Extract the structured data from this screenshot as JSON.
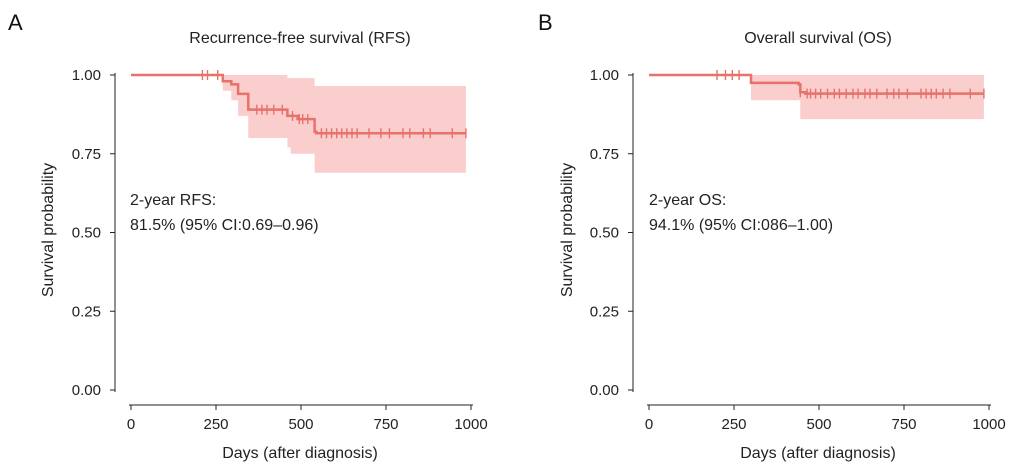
{
  "chart_data": [
    {
      "panel": "A",
      "type": "line",
      "title": "Recurrence-free survival (RFS)",
      "xlabel": "Days (after diagnosis)",
      "ylabel": "Survival probability",
      "xlim": [
        0,
        1000
      ],
      "ylim": [
        0,
        1
      ],
      "xticks": [
        "0",
        "250",
        "500",
        "750",
        "1000"
      ],
      "yticks": [
        "0.00",
        "0.25",
        "0.50",
        "0.75",
        "1.00"
      ],
      "annotation": [
        "2-year RFS:",
        "81.5% (95% CI:0.69–0.96)"
      ],
      "color": "#e8716a",
      "ci_color": "#f9c9c6",
      "grid": false,
      "series": [
        {
          "steps": [
            {
              "x": 0,
              "y": 1.0
            },
            {
              "x": 270,
              "y": 0.98
            },
            {
              "x": 295,
              "y": 0.97
            },
            {
              "x": 315,
              "y": 0.94
            },
            {
              "x": 345,
              "y": 0.89
            },
            {
              "x": 365,
              "y": 0.89
            },
            {
              "x": 460,
              "y": 0.87
            },
            {
              "x": 490,
              "y": 0.86
            },
            {
              "x": 540,
              "y": 0.82
            },
            {
              "x": 545,
              "y": 0.815
            },
            {
              "x": 985,
              "y": 0.815
            }
          ],
          "ci": [
            {
              "x": 0,
              "lo": 1.0,
              "hi": 1.0
            },
            {
              "x": 270,
              "lo": 0.95,
              "hi": 1.0
            },
            {
              "x": 295,
              "lo": 0.92,
              "hi": 1.0
            },
            {
              "x": 315,
              "lo": 0.87,
              "hi": 1.0
            },
            {
              "x": 345,
              "lo": 0.8,
              "hi": 1.0
            },
            {
              "x": 460,
              "lo": 0.77,
              "hi": 0.99
            },
            {
              "x": 470,
              "lo": 0.75,
              "hi": 0.99
            },
            {
              "x": 540,
              "lo": 0.69,
              "hi": 0.965
            },
            {
              "x": 985,
              "lo": 0.69,
              "hi": 0.965
            }
          ],
          "censored_x": [
            210,
            225,
            255,
            370,
            385,
            400,
            420,
            445,
            475,
            495,
            505,
            520,
            560,
            575,
            590,
            605,
            620,
            635,
            650,
            665,
            700,
            735,
            760,
            800,
            820,
            860,
            880,
            945,
            985
          ]
        }
      ]
    },
    {
      "panel": "B",
      "type": "line",
      "title": "Overall survival (OS)",
      "xlabel": "Days (after diagnosis)",
      "ylabel": "Survival probability",
      "xlim": [
        0,
        1000
      ],
      "ylim": [
        0,
        1
      ],
      "xticks": [
        "0",
        "250",
        "500",
        "750",
        "1000"
      ],
      "yticks": [
        "0.00",
        "0.25",
        "0.50",
        "0.75",
        "1.00"
      ],
      "annotation": [
        "2-year OS:",
        "94.1% (95% CI:086–1.00)"
      ],
      "color": "#e8716a",
      "ci_color": "#f9c9c6",
      "grid": false,
      "series": [
        {
          "steps": [
            {
              "x": 0,
              "y": 1.0
            },
            {
              "x": 300,
              "y": 0.975
            },
            {
              "x": 440,
              "y": 0.97
            },
            {
              "x": 445,
              "y": 0.945
            },
            {
              "x": 460,
              "y": 0.941
            },
            {
              "x": 985,
              "y": 0.941
            }
          ],
          "ci": [
            {
              "x": 0,
              "lo": 1.0,
              "hi": 1.0
            },
            {
              "x": 300,
              "lo": 0.92,
              "hi": 1.0
            },
            {
              "x": 445,
              "lo": 0.86,
              "hi": 1.0
            },
            {
              "x": 985,
              "lo": 0.86,
              "hi": 1.0
            }
          ],
          "censored_x": [
            200,
            225,
            245,
            265,
            445,
            465,
            475,
            490,
            505,
            525,
            545,
            560,
            580,
            600,
            615,
            635,
            650,
            670,
            700,
            720,
            735,
            760,
            800,
            815,
            830,
            845,
            865,
            885,
            945,
            985
          ]
        }
      ]
    }
  ]
}
